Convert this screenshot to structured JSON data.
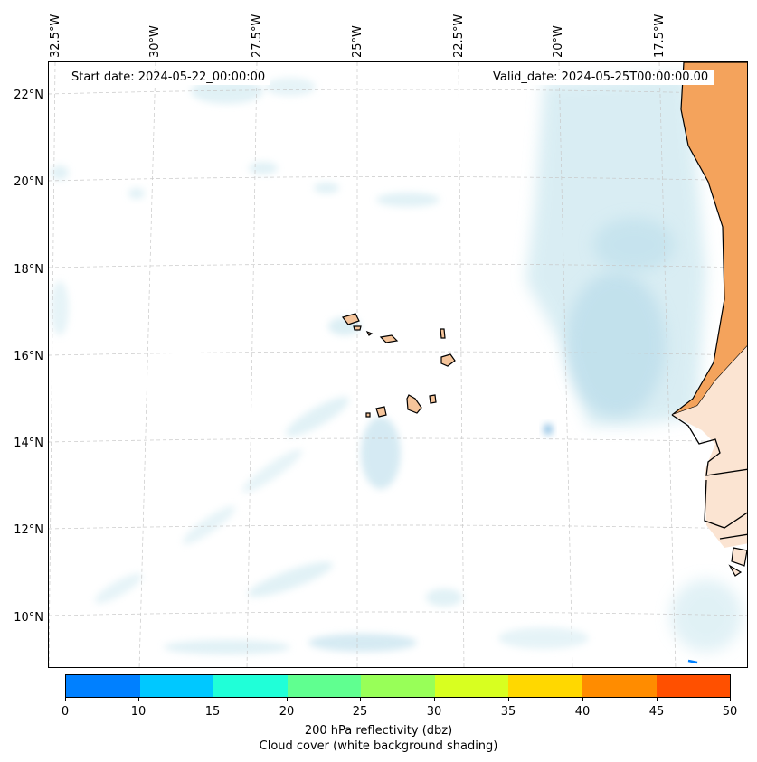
{
  "map": {
    "start_date": "Start date: 2024-05-22_00:00:00",
    "valid_date": "Valid_date: 2024-05-25T00:00:00.00",
    "lon_labels": [
      "32.5°W",
      "30°W",
      "27.5°W",
      "25°W",
      "22.5°W",
      "20°W",
      "17.5°W"
    ],
    "lat_labels": [
      "22°N",
      "20°N",
      "18°N",
      "16°N",
      "14°N",
      "12°N",
      "10°N"
    ],
    "region": "Cape Verde Islands and West African coast",
    "colors": {
      "cloud": "#cde8f0",
      "land": "#f4a35c",
      "island": "#f5c49a",
      "coast": "#000000"
    }
  },
  "colorbar": {
    "ticks": [
      "0",
      "10",
      "15",
      "20",
      "25",
      "30",
      "35",
      "40",
      "45",
      "50"
    ],
    "colors": [
      "#0080ff",
      "#00c8ff",
      "#20ffd8",
      "#60ff90",
      "#98ff58",
      "#d8ff20",
      "#ffd800",
      "#ff8c00",
      "#ff5000"
    ],
    "title": "200 hPa reflectivity (dbz)",
    "subtitle": "Cloud cover (white background shading)"
  }
}
